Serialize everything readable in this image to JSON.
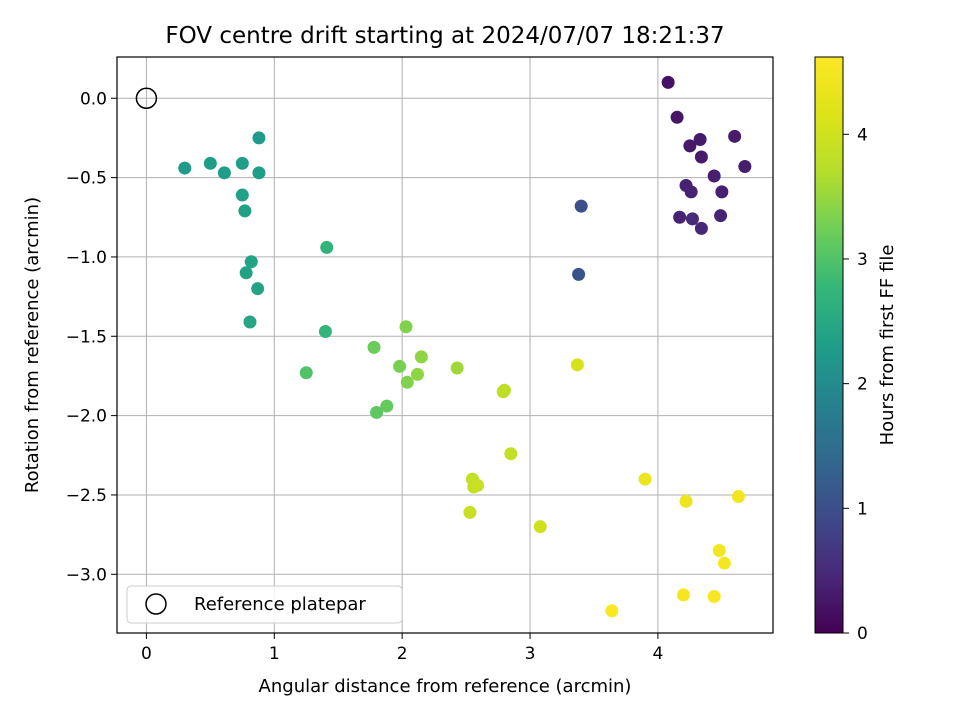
{
  "chart_data": {
    "type": "scatter",
    "title": "FOV centre drift starting at 2024/07/07 18:21:37",
    "xlabel": "Angular distance from reference (arcmin)",
    "ylabel": "Rotation from reference (arcmin)",
    "xlim": [
      -0.23,
      4.9
    ],
    "ylim": [
      -3.37,
      0.26
    ],
    "xticks": [
      0,
      1,
      2,
      3,
      4
    ],
    "yticks": [
      0.0,
      -0.5,
      -1.0,
      -1.5,
      -2.0,
      -2.5,
      -3.0
    ],
    "xtick_labels": [
      "0",
      "1",
      "2",
      "3",
      "4"
    ],
    "ytick_labels": [
      "0.0",
      "−0.5",
      "−1.0",
      "−1.5",
      "−2.0",
      "−2.5",
      "−3.0"
    ],
    "grid": true,
    "legend": {
      "placement": "lower-left",
      "label": "Reference platepar"
    },
    "reference_point": {
      "x": 0,
      "y": 0
    },
    "colorbar": {
      "label": "Hours from first FF file",
      "colormap": "viridis",
      "min": 0,
      "max": 4.62,
      "ticks": [
        0,
        1,
        2,
        3,
        4
      ],
      "tick_labels": [
        "0",
        "1",
        "2",
        "3",
        "4"
      ]
    },
    "series": [
      {
        "x": [
          4.08,
          4.15,
          4.33,
          4.25,
          4.34,
          4.6,
          4.68,
          4.44,
          4.5,
          4.22,
          4.26,
          4.17,
          4.49,
          4.34,
          4.27,
          3.4,
          3.38,
          0.88,
          0.3,
          0.5,
          0.61,
          0.75,
          0.88,
          0.75,
          0.77,
          0.82,
          0.78,
          0.87,
          0.81,
          1.41,
          1.4,
          1.25,
          1.78,
          1.8,
          1.88,
          1.98,
          2.03,
          2.04,
          2.15,
          2.12,
          2.43,
          2.79,
          2.8,
          2.85,
          2.55,
          2.56,
          2.59,
          2.53,
          3.08,
          3.37,
          3.9,
          4.22,
          4.63,
          4.48,
          4.52,
          4.2,
          4.44,
          3.64
        ],
        "y": [
          0.1,
          -0.12,
          -0.26,
          -0.3,
          -0.37,
          -0.24,
          -0.43,
          -0.49,
          -0.59,
          -0.55,
          -0.59,
          -0.75,
          -0.74,
          -0.82,
          -0.76,
          -0.68,
          -1.11,
          -0.25,
          -0.44,
          -0.41,
          -0.47,
          -0.41,
          -0.47,
          -0.61,
          -0.71,
          -1.03,
          -1.1,
          -1.2,
          -1.41,
          -0.94,
          -1.47,
          -1.73,
          -1.57,
          -1.98,
          -1.94,
          -1.69,
          -1.44,
          -1.79,
          -1.63,
          -1.74,
          -1.7,
          -1.85,
          -1.84,
          -2.24,
          -2.4,
          -2.45,
          -2.44,
          -2.61,
          -2.7,
          -1.68,
          -2.4,
          -2.54,
          -2.51,
          -2.85,
          -2.93,
          -3.13,
          -3.14,
          -3.23
        ],
        "hours": [
          0.2,
          0.25,
          0.28,
          0.3,
          0.3,
          0.32,
          0.34,
          0.35,
          0.37,
          0.38,
          0.4,
          0.4,
          0.42,
          0.45,
          0.5,
          1.0,
          1.05,
          2.25,
          2.28,
          2.3,
          2.3,
          2.32,
          2.33,
          2.35,
          2.35,
          2.4,
          2.4,
          2.42,
          2.45,
          2.7,
          2.72,
          3.0,
          3.2,
          3.1,
          3.15,
          3.3,
          3.35,
          3.35,
          3.45,
          3.45,
          3.55,
          3.8,
          3.8,
          3.85,
          3.85,
          3.88,
          3.9,
          3.9,
          4.0,
          4.1,
          4.35,
          4.4,
          4.45,
          4.45,
          4.5,
          4.52,
          4.55,
          4.58
        ]
      }
    ]
  }
}
